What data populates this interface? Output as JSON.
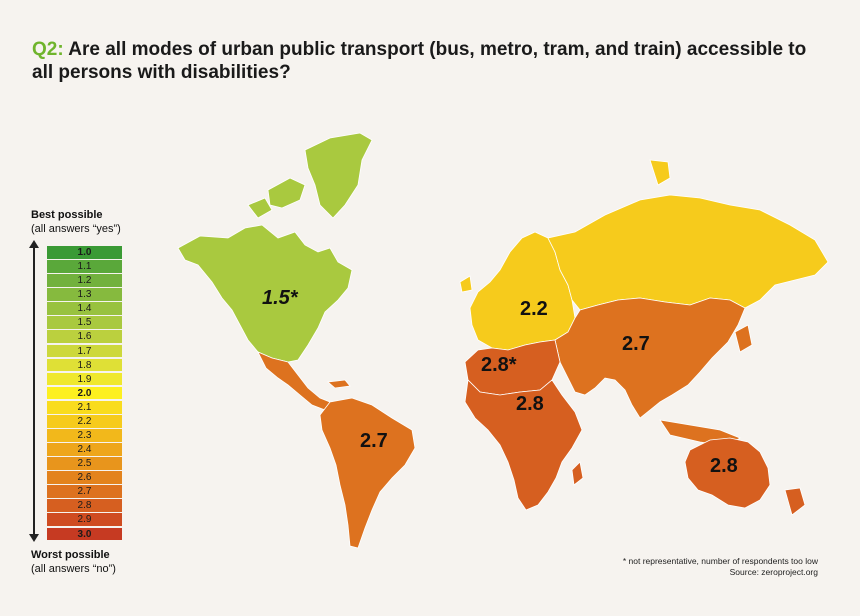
{
  "title": {
    "prefix": "Q2:",
    "text": "Are all modes of urban public transport (bus, metro, tram, and train) accessible to all persons with disabilities?"
  },
  "legend": {
    "top_bold": "Best possible",
    "top_note": "(all answers “yes”)",
    "bottom_bold": "Worst possible",
    "bottom_note": "(all answers “no”)",
    "scale": [
      {
        "label": "1.0",
        "color": "#3a9a35",
        "bold": true
      },
      {
        "label": "1.1",
        "color": "#5aa83a"
      },
      {
        "label": "1.2",
        "color": "#72b13d"
      },
      {
        "label": "1.3",
        "color": "#86ba3e"
      },
      {
        "label": "1.4",
        "color": "#98c23f"
      },
      {
        "label": "1.5",
        "color": "#a9c93f"
      },
      {
        "label": "1.6",
        "color": "#bbd03e"
      },
      {
        "label": "1.7",
        "color": "#cdd83c"
      },
      {
        "label": "1.8",
        "color": "#dfe036"
      },
      {
        "label": "1.9",
        "color": "#efe82e"
      },
      {
        "label": "2.0",
        "color": "#fdf01f",
        "bold": true
      },
      {
        "label": "2.1",
        "color": "#f9dc1e"
      },
      {
        "label": "2.2",
        "color": "#f6cb1c"
      },
      {
        "label": "2.3",
        "color": "#f2b81b"
      },
      {
        "label": "2.4",
        "color": "#eea61b"
      },
      {
        "label": "2.5",
        "color": "#e8951c"
      },
      {
        "label": "2.6",
        "color": "#e3831d"
      },
      {
        "label": "2.7",
        "color": "#dd721f"
      },
      {
        "label": "2.8",
        "color": "#d65f20"
      },
      {
        "label": "2.9",
        "color": "#cf4c21"
      },
      {
        "label": "3.0",
        "color": "#c63a22",
        "bold": true
      }
    ]
  },
  "regions": {
    "north_america": {
      "value": "1.5*",
      "color": "#a9c93f"
    },
    "latin_america": {
      "value": "2.7",
      "color": "#dd721f"
    },
    "europe": {
      "value": "2.2",
      "color": "#f6cb1c"
    },
    "north_africa": {
      "value": "2.8*",
      "color": "#d65f20"
    },
    "sub_saharan_africa": {
      "value": "2.8",
      "color": "#d65f20"
    },
    "asia": {
      "value": "2.7",
      "color": "#dd721f"
    },
    "oceania": {
      "value": "2.8",
      "color": "#d65f20"
    }
  },
  "footnote": {
    "note": "* not representative, number of respondents too low",
    "source": "Source: zeroproject.org"
  }
}
